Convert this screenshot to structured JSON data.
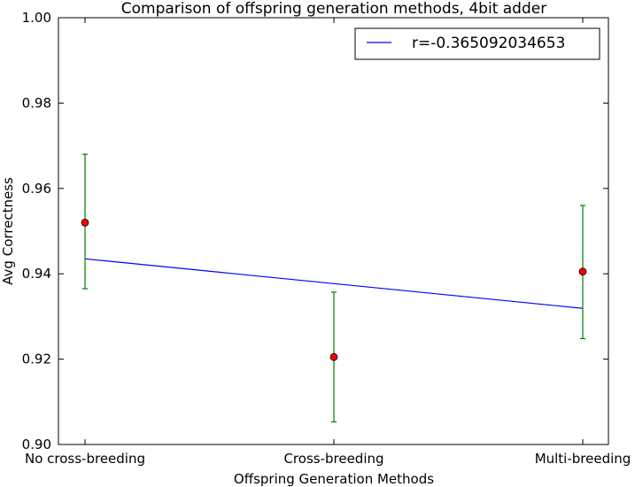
{
  "chart_data": {
    "type": "scatter",
    "title": "Comparison of offspring generation methods, 4bit adder",
    "xlabel": "Offspring Generation Methods",
    "ylabel": "Avg Correctness",
    "categories": [
      "No cross-breeding",
      "Cross-breeding",
      "Multi-breeding"
    ],
    "ylim": [
      0.9,
      1.0
    ],
    "yticks": [
      "0.90",
      "0.92",
      "0.94",
      "0.96",
      "0.98",
      "1.00"
    ],
    "grid": false,
    "legend_position": "top-right",
    "points": {
      "values": [
        0.952,
        0.9205,
        0.9405
      ],
      "err_low": [
        0.9365,
        0.9053,
        0.9248
      ],
      "err_high": [
        0.968,
        0.9357,
        0.956
      ],
      "marker_color": "#ff0000",
      "error_color": "#008000"
    },
    "fit_line": {
      "name": "r=-0.365092034653",
      "values": [
        0.9435,
        0.9377,
        0.9319
      ],
      "color": "#0000ff"
    }
  }
}
